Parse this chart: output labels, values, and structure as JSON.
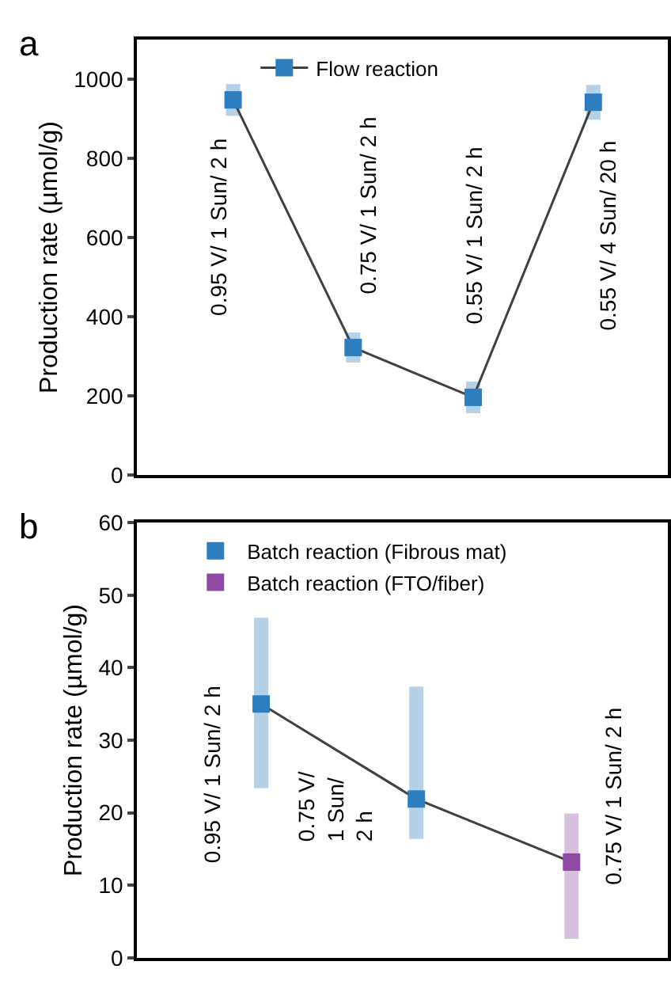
{
  "chart_data": [
    {
      "type": "line",
      "title": "a",
      "ylabel": "Production rate (µmol/g)",
      "categories": [
        null,
        null,
        null,
        null
      ],
      "ylim": [
        0,
        1100
      ],
      "yticks": [
        0,
        200,
        400,
        600,
        800,
        1000
      ],
      "legend": "top",
      "marker": "square",
      "line_style": "solid",
      "series": [
        {
          "name": "Flow reaction",
          "color": "#2e7ebf",
          "values": [
            948,
            322,
            196,
            942
          ],
          "errors": [
            40,
            38,
            40,
            44
          ]
        }
      ],
      "annotations": [
        "0.95 V/ 1 Sun/ 2 h",
        "0.75 V/ 1 Sun/ 2 h",
        "0.55 V/ 1 Sun/ 2 h",
        "0.55 V/ 4 Sun/ 20 h"
      ]
    },
    {
      "type": "scatter",
      "title": "b",
      "ylabel": "Production rate (µmol/g)",
      "categories": [
        null,
        null,
        null
      ],
      "ylim": [
        0,
        60
      ],
      "yticks": [
        0,
        10,
        20,
        30,
        40,
        50,
        60
      ],
      "legend": "top",
      "marker": "square",
      "series": [
        {
          "type": "line",
          "color": "#404040",
          "values": [
            35,
            21.9,
            13.2
          ],
          "marker": "none",
          "line_style": "solid"
        },
        {
          "name": "Batch reaction (Fibrous mat)",
          "color": "#2e7ebf",
          "values": [
            35,
            21.9,
            null
          ],
          "errors": [
            [
              23.4,
              46.9
            ],
            [
              16.4,
              37.4
            ],
            null
          ]
        },
        {
          "name": "Batch reaction (FTO/fiber)",
          "color": "#8e4aa3",
          "values": [
            null,
            null,
            13.2
          ],
          "errors": [
            null,
            null,
            [
              2.6,
              19.9
            ]
          ]
        }
      ],
      "annotations": [
        "0.95 V/ 1 Sun/ 2 h",
        "0.75 V/\n1 Sun/\n2 h",
        "0.75 V/ 1 Sun/ 2 h"
      ]
    }
  ]
}
